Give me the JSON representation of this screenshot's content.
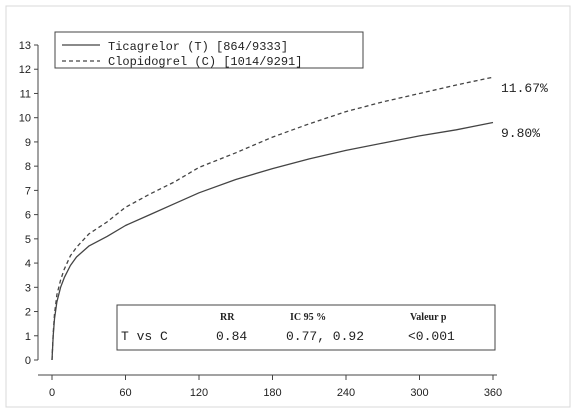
{
  "chart_data": {
    "type": "line",
    "title": "",
    "xlabel": "",
    "ylabel": "",
    "xlim": [
      0,
      360
    ],
    "ylim": [
      0,
      13
    ],
    "x_ticks": [
      "0",
      "60",
      "120",
      "180",
      "240",
      "300",
      "360"
    ],
    "y_ticks": [
      "0",
      "1",
      "2",
      "3",
      "4",
      "5",
      "6",
      "7",
      "8",
      "9",
      "10",
      "11",
      "12",
      "13"
    ],
    "grid": false,
    "legend_position": "top-left",
    "series": [
      {
        "name": "Ticagrelor (T) [864/9333]",
        "style": "solid",
        "color": "#444444",
        "end_label": "9.80%",
        "x": [
          0,
          1,
          2,
          4,
          7,
          10,
          15,
          20,
          30,
          45,
          60,
          80,
          100,
          120,
          150,
          180,
          210,
          240,
          270,
          300,
          330,
          360
        ],
        "y": [
          0,
          1.0,
          1.7,
          2.4,
          3.0,
          3.4,
          3.9,
          4.25,
          4.7,
          5.1,
          5.55,
          6.0,
          6.45,
          6.9,
          7.45,
          7.9,
          8.3,
          8.65,
          8.95,
          9.25,
          9.5,
          9.8
        ]
      },
      {
        "name": "Clopidogrel (C) [1014/9291]",
        "style": "dashed",
        "color": "#444444",
        "end_label": "11.67%",
        "x": [
          0,
          1,
          2,
          4,
          7,
          10,
          15,
          20,
          30,
          45,
          60,
          80,
          100,
          120,
          150,
          180,
          210,
          240,
          270,
          300,
          330,
          360
        ],
        "y": [
          0,
          1.1,
          1.9,
          2.7,
          3.3,
          3.75,
          4.3,
          4.65,
          5.2,
          5.7,
          6.3,
          6.85,
          7.35,
          7.95,
          8.55,
          9.2,
          9.75,
          10.25,
          10.65,
          11.0,
          11.35,
          11.67
        ]
      }
    ],
    "table": {
      "headers": [
        "",
        "RR",
        "IC 95 %",
        "Valeur p"
      ],
      "row": [
        "T vs C",
        "0.84",
        "0.77, 0.92",
        "<0.001"
      ]
    }
  }
}
